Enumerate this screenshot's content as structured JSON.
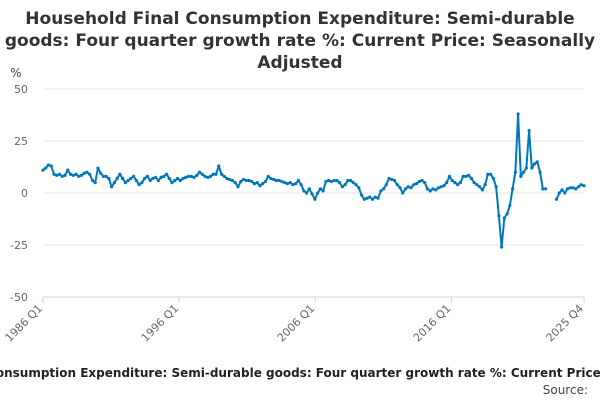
{
  "chart_data": {
    "type": "line",
    "title": "Household Final Consumption Expenditure: Semi-durable goods: Four quarter growth rate %: Current Price: Seasonally Adjusted",
    "ylabel": "%",
    "xlabel": "",
    "ylim": [
      -50,
      50
    ],
    "y_ticks": [
      50,
      25,
      0,
      -25,
      -50
    ],
    "x_ticks": [
      "1986 Q1",
      "1996 Q1",
      "2006 Q1",
      "2016 Q1",
      "2025 Q4"
    ],
    "x_start": "1986 Q1",
    "x_end": "2025 Q4",
    "grid": true,
    "legend": "bottom",
    "series": [
      {
        "name": "Household Final Consumption Expenditure: Semi-durable goods: Four quarter growth rate %: Current Price: Seasonally Adjusted",
        "color": "#0077bb",
        "values": [
          11,
          12,
          13.5,
          13,
          9,
          8.5,
          9,
          8,
          8.5,
          11,
          9,
          8.5,
          9,
          8,
          8.5,
          9.5,
          10,
          9,
          6,
          5,
          12,
          9.5,
          8,
          8,
          7,
          3,
          5,
          7,
          9,
          7,
          5,
          6,
          7,
          8,
          6,
          4,
          5,
          7,
          8,
          6,
          7,
          7.5,
          6,
          7.5,
          8,
          9,
          7,
          5,
          6,
          7,
          6,
          7,
          7.5,
          8,
          8,
          7.5,
          8.5,
          10,
          9,
          8,
          7.5,
          8,
          9,
          9,
          13,
          9,
          8,
          7,
          6.5,
          6,
          5,
          3,
          5.5,
          6.5,
          6,
          6,
          5.5,
          4.5,
          5,
          3.5,
          4.5,
          5.5,
          8,
          7,
          6.5,
          6,
          6,
          5.5,
          5,
          4.5,
          5,
          4,
          4.5,
          6,
          4,
          1,
          0,
          2,
          -0.5,
          -3,
          0,
          2,
          1,
          5.5,
          6,
          5.5,
          6,
          6,
          5,
          3,
          4,
          6,
          6,
          5,
          4,
          2.5,
          -1,
          -3,
          -2.5,
          -2,
          -3,
          -2,
          -2.5,
          1,
          2,
          4,
          7,
          6.5,
          6,
          4,
          2.5,
          0,
          2,
          3,
          2.5,
          4,
          4.5,
          5.5,
          6,
          5,
          2,
          1,
          2,
          1.5,
          2.5,
          3,
          3.5,
          5,
          8,
          6,
          5,
          4,
          5,
          8,
          8,
          8.5,
          7,
          5,
          4,
          3,
          1.5,
          4,
          9,
          9,
          7,
          3,
          -11,
          -26,
          -12,
          -10,
          -6,
          2,
          10,
          38,
          8,
          10,
          12,
          30,
          12,
          14,
          15,
          10,
          2,
          2,
          null,
          null,
          null,
          -3,
          0,
          1.5,
          0,
          2,
          2.5,
          2.5,
          2,
          3,
          4,
          3.5
        ]
      }
    ]
  },
  "source_label": "Source:"
}
